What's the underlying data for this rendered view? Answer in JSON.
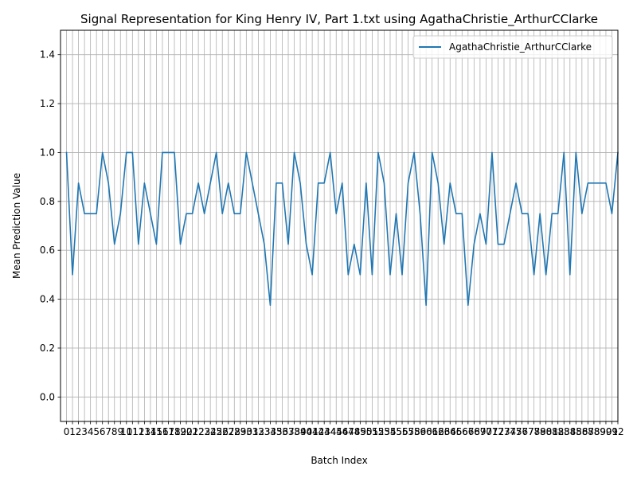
{
  "chart_data": {
    "type": "line",
    "title": "Signal Representation for King Henry IV, Part 1.txt using AgathaChristie_ArthurCClarke",
    "xlabel": "Batch Index",
    "ylabel": "Mean Prediction Value",
    "xlim": [
      -1.0,
      92.0
    ],
    "ylim": [
      -0.1,
      1.5
    ],
    "yticks": [
      "0.0",
      "0.2",
      "0.4",
      "0.6",
      "0.8",
      "1.0",
      "1.2",
      "1.4"
    ],
    "ytick_values": [
      0.0,
      0.2,
      0.4,
      0.6,
      0.8,
      1.0,
      1.2,
      1.4
    ],
    "grid": true,
    "legend_position": "top-right",
    "series": [
      {
        "name": "AgathaChristie_ArthurCClarke",
        "color": "#1f77b4",
        "y": [
          1.0,
          0.5,
          0.875,
          0.75,
          0.75,
          0.75,
          1.0,
          0.875,
          0.625,
          0.75,
          1.0,
          1.0,
          0.625,
          0.875,
          0.75,
          0.625,
          1.0,
          1.0,
          1.0,
          0.625,
          0.75,
          0.75,
          0.875,
          0.75,
          0.875,
          1.0,
          0.75,
          0.875,
          0.75,
          0.75,
          1.0,
          0.875,
          0.75,
          0.625,
          0.375,
          0.875,
          0.875,
          0.625,
          1.0,
          0.875,
          0.625,
          0.5,
          0.875,
          0.875,
          1.0,
          0.75,
          0.875,
          0.5,
          0.625,
          0.5,
          0.875,
          0.5,
          1.0,
          0.875,
          0.5,
          0.75,
          0.5,
          0.875,
          1.0,
          0.75,
          0.375,
          1.0,
          0.875,
          0.625,
          0.875,
          0.75,
          0.75,
          0.375,
          0.625,
          0.75,
          0.625,
          1.0,
          0.625,
          0.625,
          0.75,
          0.875,
          0.75,
          0.75,
          0.5,
          0.75,
          0.5,
          0.75,
          0.75,
          1.0,
          0.5,
          1.0,
          0.75,
          0.875,
          0.875,
          0.875,
          0.875,
          0.75,
          1.0
        ]
      }
    ]
  }
}
